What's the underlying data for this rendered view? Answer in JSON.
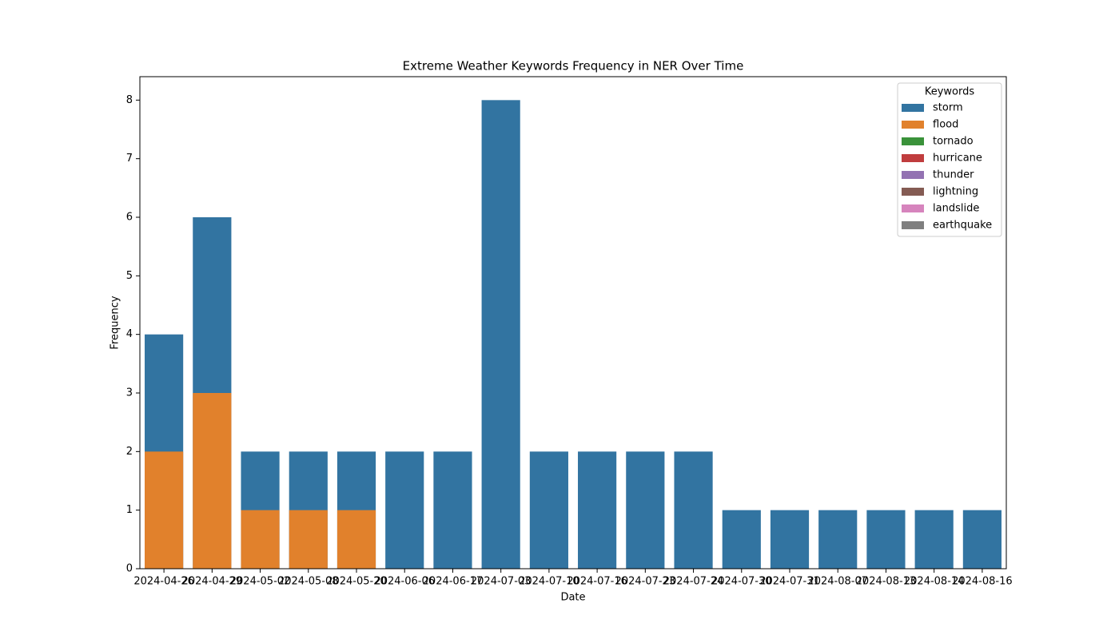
{
  "chart_data": {
    "type": "bar",
    "title": "Extreme Weather Keywords Frequency in NER Over Time",
    "x_label": "Date",
    "y_label": "Frequency",
    "categories": [
      "2024-04-26",
      "2024-04-29",
      "2024-05-02",
      "2024-05-08",
      "2024-05-20",
      "2024-06-06",
      "2024-06-17",
      "2024-07-03",
      "2024-07-10",
      "2024-07-16",
      "2024-07-23",
      "2024-07-24",
      "2024-07-30",
      "2024-07-31",
      "2024-08-07",
      "2024-08-13",
      "2024-08-14",
      "2024-08-16"
    ],
    "series": [
      {
        "name": "storm",
        "color": "#3274a1",
        "values": [
          4,
          6,
          2,
          2,
          2,
          2,
          2,
          8,
          2,
          2,
          2,
          2,
          1,
          1,
          1,
          1,
          1,
          1
        ]
      },
      {
        "name": "flood",
        "color": "#e1812c",
        "values": [
          2,
          3,
          1,
          1,
          1,
          null,
          null,
          null,
          null,
          null,
          null,
          null,
          null,
          null,
          null,
          null,
          null,
          null
        ]
      },
      {
        "name": "tornado",
        "color": "#3a923a",
        "values": [
          null,
          null,
          null,
          null,
          null,
          null,
          null,
          null,
          null,
          null,
          null,
          null,
          null,
          null,
          null,
          null,
          null,
          null
        ]
      },
      {
        "name": "hurricane",
        "color": "#c03d3e",
        "values": [
          null,
          null,
          null,
          null,
          null,
          null,
          null,
          null,
          null,
          null,
          null,
          null,
          null,
          null,
          null,
          null,
          null,
          null
        ]
      },
      {
        "name": "thunder",
        "color": "#9372b2",
        "values": [
          null,
          null,
          null,
          null,
          null,
          null,
          null,
          null,
          null,
          null,
          null,
          null,
          null,
          null,
          null,
          null,
          null,
          null
        ]
      },
      {
        "name": "lightning",
        "color": "#845b53",
        "values": [
          null,
          null,
          null,
          null,
          null,
          null,
          null,
          null,
          null,
          null,
          null,
          null,
          null,
          null,
          null,
          null,
          null,
          null
        ]
      },
      {
        "name": "landslide",
        "color": "#d684bd",
        "values": [
          null,
          null,
          null,
          null,
          null,
          null,
          null,
          null,
          null,
          null,
          null,
          null,
          null,
          null,
          null,
          null,
          null,
          null
        ]
      },
      {
        "name": "earthquake",
        "color": "#7f7f7f",
        "values": [
          null,
          null,
          null,
          null,
          null,
          null,
          null,
          null,
          null,
          null,
          null,
          null,
          null,
          null,
          null,
          null,
          null,
          null
        ]
      }
    ],
    "legend_title": "Keywords",
    "legend": "upper right",
    "ylim": [
      0,
      8.4
    ],
    "yticks": [
      0,
      1,
      2,
      3,
      4,
      5,
      6,
      7,
      8
    ]
  }
}
